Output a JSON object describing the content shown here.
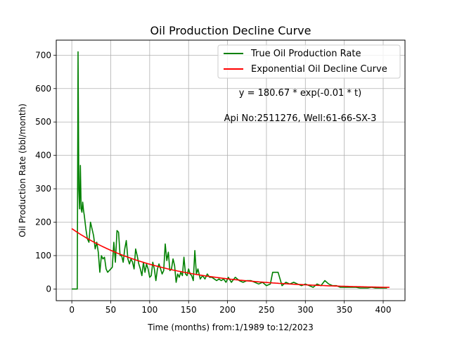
{
  "chart_data": {
    "type": "line",
    "title": "Oil Production Decline Curve",
    "xlabel": "Time (months) from:1/1989 to:12/2023",
    "ylabel": "Oil Production Rate (bbl/month)",
    "xlim": [
      -20,
      428
    ],
    "ylim": [
      -35,
      745
    ],
    "xticks": [
      0,
      50,
      100,
      150,
      200,
      250,
      300,
      350,
      400
    ],
    "yticks": [
      0,
      100,
      200,
      300,
      400,
      500,
      600,
      700
    ],
    "grid": true,
    "legend_position": "top-right",
    "annotations": [
      {
        "text": "y = 180.67 * exp(-0.01 * t)",
        "x": 295,
        "y": 580
      },
      {
        "text": "Api No:2511276, Well:61-66-SX-3",
        "x": 295,
        "y": 510
      }
    ],
    "series": [
      {
        "name": "True Oil Production Rate",
        "color": "#008000",
        "x": [
          0,
          7,
          8,
          9,
          10,
          11,
          12,
          13,
          14,
          15,
          16,
          18,
          20,
          22,
          24,
          26,
          28,
          30,
          32,
          34,
          36,
          38,
          40,
          42,
          44,
          46,
          48,
          50,
          52,
          54,
          56,
          58,
          60,
          62,
          64,
          66,
          68,
          70,
          72,
          74,
          76,
          78,
          80,
          82,
          84,
          86,
          88,
          90,
          92,
          94,
          96,
          98,
          100,
          102,
          104,
          106,
          108,
          110,
          112,
          114,
          116,
          118,
          120,
          122,
          124,
          126,
          128,
          130,
          132,
          134,
          136,
          138,
          140,
          142,
          144,
          146,
          148,
          150,
          152,
          154,
          156,
          158,
          160,
          162,
          165,
          168,
          171,
          174,
          177,
          180,
          183,
          186,
          189,
          192,
          195,
          198,
          201,
          205,
          210,
          215,
          220,
          225,
          230,
          235,
          240,
          245,
          250,
          255,
          258,
          260,
          262,
          265,
          270,
          275,
          280,
          285,
          290,
          295,
          300,
          305,
          310,
          315,
          320,
          325,
          330,
          335,
          340,
          345,
          350,
          355,
          360,
          365,
          370,
          375,
          380,
          385,
          390,
          395,
          400,
          405
        ],
        "values": [
          0,
          0,
          710,
          300,
          240,
          370,
          240,
          230,
          260,
          235,
          220,
          180,
          150,
          140,
          200,
          180,
          160,
          120,
          140,
          110,
          50,
          100,
          90,
          95,
          60,
          50,
          55,
          60,
          65,
          140,
          80,
          175,
          170,
          100,
          100,
          80,
          120,
          145,
          90,
          75,
          90,
          80,
          60,
          120,
          100,
          75,
          60,
          40,
          80,
          50,
          75,
          60,
          35,
          40,
          80,
          60,
          25,
          60,
          75,
          60,
          45,
          55,
          135,
          85,
          110,
          55,
          60,
          90,
          70,
          20,
          45,
          35,
          50,
          40,
          95,
          45,
          40,
          60,
          45,
          40,
          25,
          115,
          45,
          60,
          30,
          40,
          30,
          45,
          35,
          35,
          30,
          25,
          30,
          25,
          30,
          20,
          35,
          20,
          35,
          25,
          20,
          25,
          25,
          20,
          15,
          20,
          10,
          15,
          50,
          50,
          50,
          50,
          10,
          20,
          15,
          20,
          15,
          10,
          15,
          10,
          5,
          15,
          10,
          25,
          15,
          10,
          10,
          5,
          5,
          5,
          5,
          5,
          3,
          3,
          3,
          5,
          3,
          3,
          3,
          3
        ]
      },
      {
        "name": "Exponential Oil Decline Curve",
        "color": "#ff0000",
        "function": {
          "a": 180.67,
          "b": 0.0089
        },
        "x_range": [
          0,
          408
        ]
      }
    ]
  }
}
